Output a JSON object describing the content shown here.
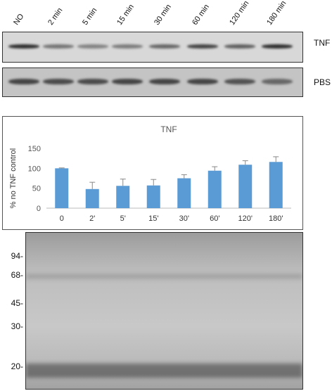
{
  "lane_labels": [
    "NO",
    "2 min",
    "5 min",
    "15 min",
    "30 min",
    "60 min",
    "120 min",
    "180 min"
  ],
  "tnf_label": "TNF",
  "pbs_label": "PBS",
  "tnf_band_intensity": [
    0.95,
    0.45,
    0.35,
    0.4,
    0.55,
    0.8,
    0.6,
    0.95
  ],
  "pbs_band_intensity": [
    0.8,
    0.75,
    0.75,
    0.8,
    0.8,
    0.8,
    0.7,
    0.55
  ],
  "chart_data": {
    "type": "bar",
    "title": "TNF",
    "xlabel": "",
    "ylabel": "% no TNF control",
    "categories": [
      "0",
      "2'",
      "5'",
      "15'",
      "30'",
      "60'",
      "120'",
      "180'"
    ],
    "values": [
      100,
      48,
      56,
      57,
      75,
      94,
      109,
      116
    ],
    "errors": [
      1,
      17,
      17,
      15,
      9,
      10,
      10,
      13
    ],
    "ylim": [
      0,
      150
    ],
    "yticks": [
      0,
      50,
      100,
      150
    ],
    "color": "#5B9BD5",
    "grid": false
  },
  "markers": [
    "94-",
    "68-",
    "45-",
    "30-",
    "20-"
  ]
}
